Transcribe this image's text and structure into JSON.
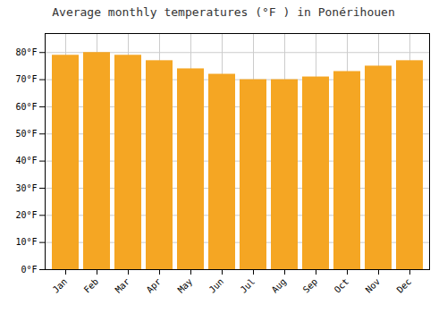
{
  "chart_data": {
    "type": "bar",
    "title": "Average monthly temperatures (°F ) in Ponérihouen",
    "categories": [
      "Jan",
      "Feb",
      "Mar",
      "Apr",
      "May",
      "Jun",
      "Jul",
      "Aug",
      "Sep",
      "Oct",
      "Nov",
      "Dec"
    ],
    "values": [
      79,
      80,
      79,
      77,
      74,
      72,
      70,
      70,
      71,
      73,
      75,
      77
    ],
    "color": "#F5A623",
    "ylim": [
      0,
      87
    ],
    "yticks": [
      {
        "value": 0,
        "label": "0°F"
      },
      {
        "value": 10,
        "label": "10°F"
      },
      {
        "value": 20,
        "label": "20°F"
      },
      {
        "value": 30,
        "label": "30°F"
      },
      {
        "value": 40,
        "label": "40°F"
      },
      {
        "value": 50,
        "label": "50°F"
      },
      {
        "value": 60,
        "label": "60°F"
      },
      {
        "value": 70,
        "label": "70°F"
      },
      {
        "value": 80,
        "label": "80°F"
      }
    ],
    "grid": true
  }
}
